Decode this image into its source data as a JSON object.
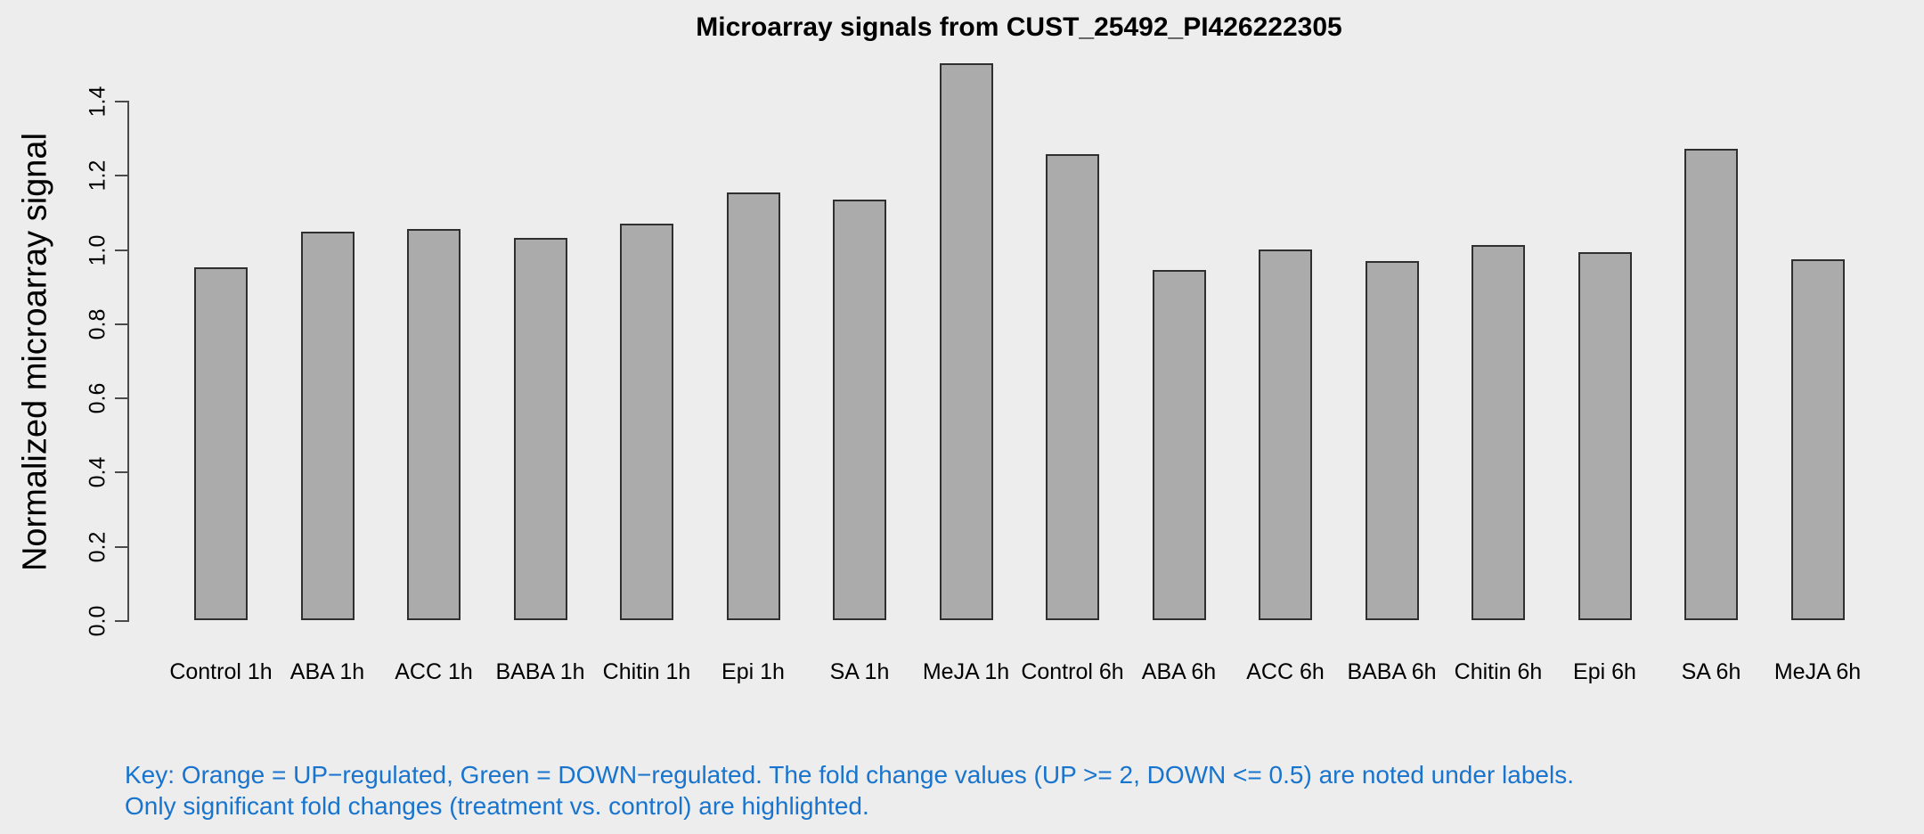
{
  "chart_data": {
    "type": "bar",
    "title": "Microarray signals from CUST_25492_PI426222305",
    "ylabel": "Normalized microarray signal",
    "xlabel": "",
    "categories": [
      "Control 1h",
      "ABA 1h",
      "ACC 1h",
      "BABA 1h",
      "Chitin 1h",
      "Epi 1h",
      "SA 1h",
      "MeJA 1h",
      "Control 6h",
      "ABA 6h",
      "ACC 6h",
      "BABA 6h",
      "Chitin 6h",
      "Epi 6h",
      "SA 6h",
      "MeJA 6h"
    ],
    "values": [
      0.95,
      1.047,
      1.055,
      1.031,
      1.069,
      1.152,
      1.133,
      1.5,
      1.256,
      0.944,
      0.998,
      0.968,
      1.011,
      0.992,
      1.27,
      0.973
    ],
    "yticks": [
      0.0,
      0.2,
      0.4,
      0.6,
      0.8,
      1.0,
      1.2,
      1.4
    ],
    "ylim": [
      0,
      1.5
    ],
    "grid": false,
    "legend": "none",
    "bar_color": "#ABABAB",
    "bar_border": "#2F2F2F",
    "axis_color": "#4A4A4A",
    "background": "#EDEDED"
  },
  "caption": {
    "line1": "Key: Orange = UP−regulated, Green = DOWN−regulated. The fold change values (UP >= 2, DOWN <= 0.5) are noted under labels.",
    "line2": "Only significant fold changes (treatment vs. control) are highlighted.",
    "color": "#1874CD"
  }
}
